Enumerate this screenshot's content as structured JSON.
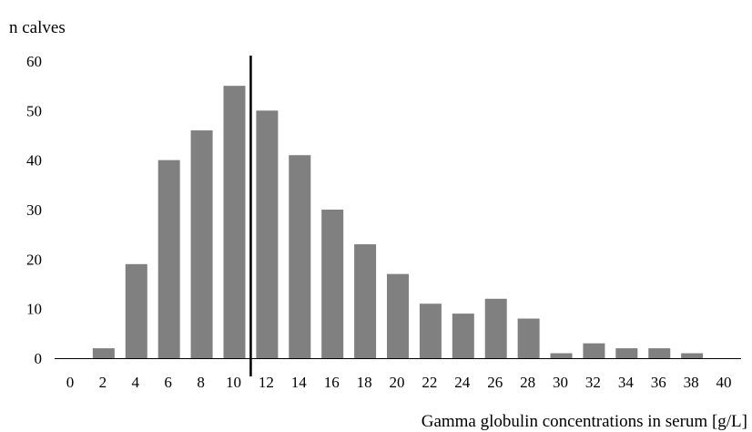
{
  "chart_data": {
    "type": "bar",
    "title": "",
    "ylabel": "n calves",
    "xlabel": "Gamma globulin concentrations in serum [g/L]",
    "categories": [
      "0",
      "2",
      "4",
      "6",
      "8",
      "10",
      "12",
      "14",
      "16",
      "18",
      "20",
      "22",
      "24",
      "26",
      "28",
      "30",
      "32",
      "34",
      "36",
      "38",
      "40"
    ],
    "values": [
      0,
      2,
      19,
      40,
      46,
      55,
      50,
      41,
      30,
      23,
      17,
      11,
      9,
      12,
      8,
      1,
      3,
      2,
      2,
      1,
      0
    ],
    "ylim": [
      0,
      60
    ],
    "yticks": [
      "0",
      "10",
      "20",
      "30",
      "40",
      "50",
      "60"
    ],
    "grid": false,
    "reference_line_x": 11,
    "colors": {
      "bar": "#808080",
      "axis": "#000000",
      "reference_line": "#000000"
    }
  }
}
